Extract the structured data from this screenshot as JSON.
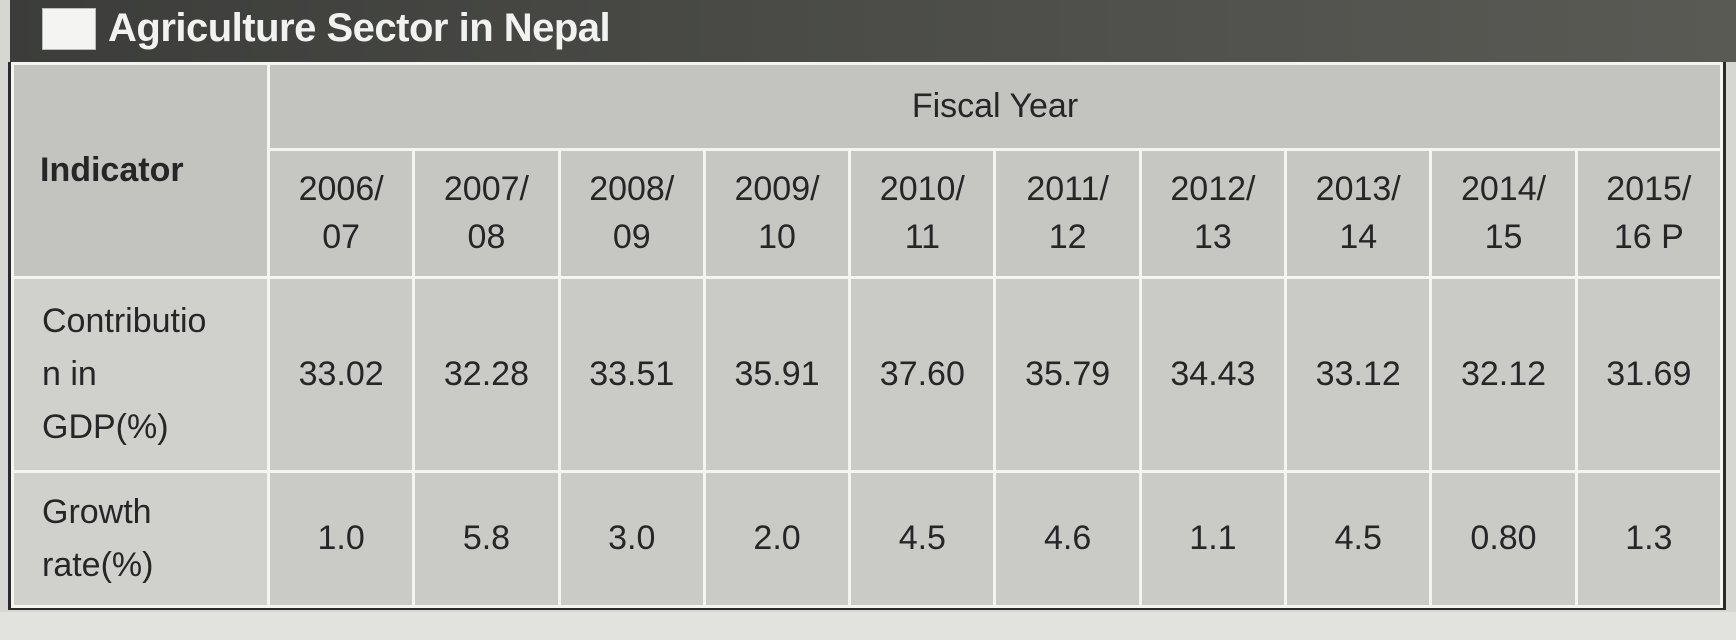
{
  "title": "Agriculture Sector in Nepal",
  "table": {
    "indicator_header": "Indicator",
    "fiscal_year_header": "Fiscal Year",
    "years": [
      [
        "2006/",
        "07"
      ],
      [
        "2007/",
        "08"
      ],
      [
        "2008/",
        "09"
      ],
      [
        "2009/",
        "10"
      ],
      [
        "2010/",
        "11"
      ],
      [
        "2011/",
        "12"
      ],
      [
        "2012/",
        "13"
      ],
      [
        "2013/",
        "14"
      ],
      [
        "2014/",
        "15"
      ],
      [
        "2015/",
        "16 P"
      ]
    ],
    "rows": [
      {
        "label_lines": [
          "Contributio",
          "n in",
          "GDP(%)"
        ],
        "values": [
          "33.02",
          "32.28",
          "33.51",
          "35.91",
          "37.60",
          "35.79",
          "34.43",
          "33.12",
          "32.12",
          "31.69"
        ]
      },
      {
        "label_lines": [
          "Growth",
          "rate(%)"
        ],
        "values": [
          "1.0",
          "5.8",
          "3.0",
          "2.0",
          "4.5",
          "4.6",
          "1.1",
          "4.5",
          "0.80",
          "1.3"
        ]
      }
    ]
  }
}
